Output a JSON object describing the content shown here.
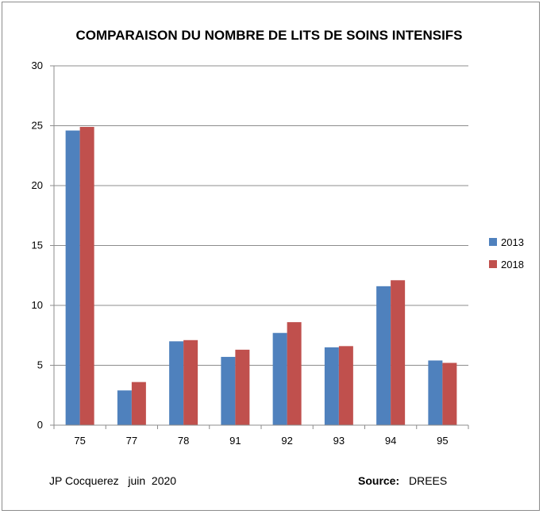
{
  "chart_data": {
    "type": "bar",
    "title": "COMPARAISON DU NOMBRE DE LITS DE SOINS INTENSIFS",
    "categories": [
      "75",
      "77",
      "78",
      "91",
      "92",
      "93",
      "94",
      "95"
    ],
    "series": [
      {
        "name": "2013",
        "values": [
          24.6,
          2.9,
          7.0,
          5.7,
          7.7,
          6.5,
          11.6,
          5.4
        ],
        "color": "#4f81bd"
      },
      {
        "name": "2018",
        "values": [
          24.9,
          3.6,
          7.1,
          6.3,
          8.6,
          6.6,
          12.1,
          5.2
        ],
        "color": "#c0504d"
      }
    ],
    "ylim": [
      0,
      30
    ],
    "yticks": [
      0,
      5,
      10,
      15,
      20,
      25,
      30
    ],
    "grid": true,
    "legend_position": "right"
  },
  "footer": {
    "author": "JP Cocquerez   juin  2020",
    "source_label": "Source:",
    "source_value": "DREES"
  }
}
